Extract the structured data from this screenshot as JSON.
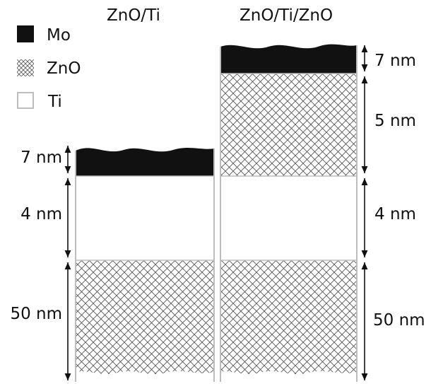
{
  "legend": [
    {
      "material": "Mo",
      "label": "Mo",
      "swatch": "solid-black"
    },
    {
      "material": "ZnO",
      "label": "ZnO",
      "swatch": "crosshatch"
    },
    {
      "material": "Ti",
      "label": "Ti",
      "swatch": "empty-gray-outline"
    }
  ],
  "stacks": [
    {
      "title": "ZnO/Ti",
      "layers": [
        {
          "material": "Mo",
          "thickness": "7 nm"
        },
        {
          "material": "Ti",
          "thickness": "4 nm"
        },
        {
          "material": "ZnO",
          "thickness": "50 nm"
        }
      ]
    },
    {
      "title": "ZnO/Ti/ZnO",
      "layers": [
        {
          "material": "Mo",
          "thickness": "7 nm"
        },
        {
          "material": "ZnO",
          "thickness": "5 nm"
        },
        {
          "material": "Ti",
          "thickness": "4 nm"
        },
        {
          "material": "ZnO",
          "thickness": "50 nm"
        }
      ]
    }
  ],
  "colors": {
    "mo_fill": "#111111",
    "hatch": "#555555",
    "ti_edge": "#bdbdbd",
    "arrow": "#111111"
  }
}
